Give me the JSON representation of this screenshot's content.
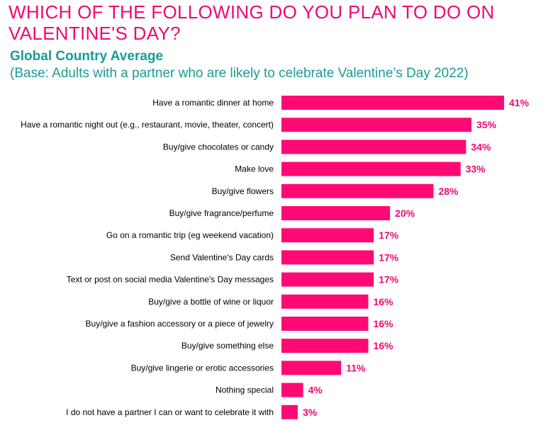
{
  "title": "WHICH OF THE FOLLOWING DO YOU PLAN TO DO ON VALENTINE'S DAY?",
  "subtitle": "Global Country Average",
  "base_note": "(Base: Adults with a partner who are likely to celebrate Valentine’s Day 2022)",
  "colors": {
    "title": "#ee0a72",
    "bar": "#ff0a74",
    "subtitle": "#1a9b95",
    "label": "#000000",
    "value": "#ee0a72"
  },
  "chart_data": {
    "type": "bar",
    "orientation": "horizontal",
    "categories": [
      "Have a romantic dinner at home",
      "Have a romantic night out (e.g., restaurant, movie, theater, concert)",
      "Buy/give chocolates or candy",
      "Make love",
      "Buy/give flowers",
      "Buy/give fragrance/perfume",
      "Go on a romantic trip (eg weekend vacation)",
      "Send Valentine's Day cards",
      "Text or post on social media Valentine's Day messages",
      "Buy/give a bottle of wine or liquor",
      "Buy/give a fashion accessory or a piece of jewelry",
      "Buy/give something else",
      "Buy/give lingerie or erotic accessories",
      "Nothing special",
      "I do not have a partner I can or want to celebrate it with"
    ],
    "values": [
      41,
      35,
      34,
      33,
      28,
      20,
      17,
      17,
      17,
      16,
      16,
      16,
      11,
      4,
      3
    ],
    "value_labels": [
      "41%",
      "35%",
      "34%",
      "33%",
      "28%",
      "20%",
      "17%",
      "17%",
      "17%",
      "16%",
      "16%",
      "16%",
      "11%",
      "4%",
      "3%"
    ],
    "unit": "%",
    "xlim": [
      0,
      41
    ],
    "grid": false,
    "legend": "none"
  }
}
